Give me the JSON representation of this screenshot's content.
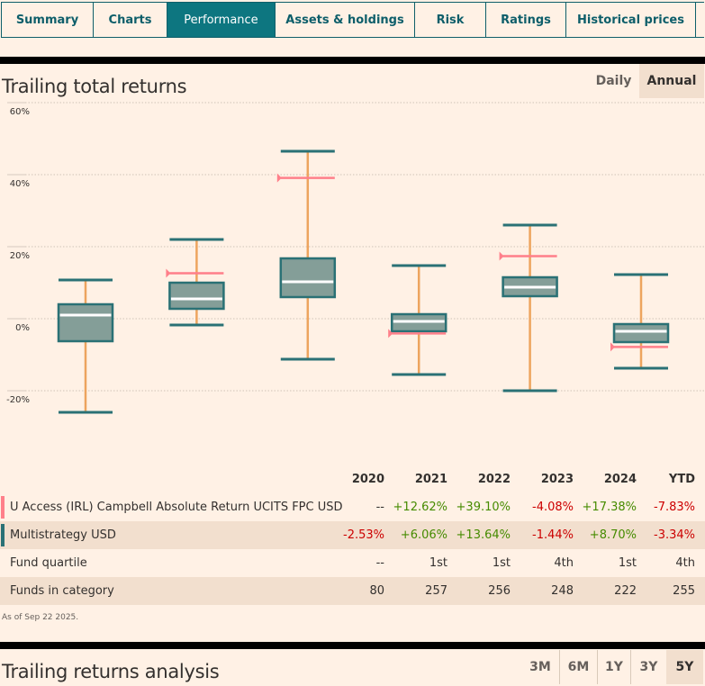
{
  "tabs": [
    {
      "label": "Summary",
      "active": false
    },
    {
      "label": "Charts",
      "active": false
    },
    {
      "label": "Performance",
      "active": true
    },
    {
      "label": "Assets & holdings",
      "active": false
    },
    {
      "label": "Risk",
      "active": false
    },
    {
      "label": "Ratings",
      "active": false
    },
    {
      "label": "Historical prices",
      "active": false
    }
  ],
  "trailing_total": {
    "title": "Trailing total returns",
    "toggle": [
      {
        "label": "Daily",
        "active": false
      },
      {
        "label": "Annual",
        "active": true
      }
    ]
  },
  "colors": {
    "accent": "#0d7680",
    "box_fill": "#849e98",
    "box_stroke": "#2a7175",
    "whisker": "#eda45e",
    "fund_marker": "#ff7f8a",
    "positive": "#458b00",
    "negative": "#cc0000"
  },
  "chart_data": {
    "type": "box",
    "title": "Trailing total returns",
    "ylabel": "",
    "xlabel": "",
    "ylim": [
      -20,
      60
    ],
    "yticks": [
      60,
      40,
      20,
      0,
      -20
    ],
    "ytick_labels": [
      "60%",
      "40%",
      "20%",
      "0%",
      "-20%"
    ],
    "grid": true,
    "categories": [
      "2020",
      "2021",
      "2022",
      "2023",
      "2024",
      "YTD"
    ],
    "category_boxes": [
      {
        "min": -26.0,
        "q1": -6.25,
        "median": 1.0,
        "q3": 4.0,
        "max": 10.75
      },
      {
        "min": -1.75,
        "q1": 2.75,
        "median": 5.5,
        "q3": 10.0,
        "max": 22.0
      },
      {
        "min": -11.25,
        "q1": 6.0,
        "median": 10.25,
        "q3": 16.75,
        "max": 46.5
      },
      {
        "min": -15.5,
        "q1": -3.5,
        "median": -0.75,
        "q3": 1.25,
        "max": 14.75
      },
      {
        "min": -20.0,
        "q1": 6.25,
        "median": 8.75,
        "q3": 11.5,
        "max": 26.0
      },
      {
        "min": -13.75,
        "q1": -6.5,
        "median": -3.5,
        "q3": -1.5,
        "max": 12.25
      }
    ],
    "fund_series": {
      "name": "U Access (IRL) Campbell Absolute Return UCITS FPC USD",
      "values": [
        null,
        12.62,
        39.1,
        -4.08,
        17.38,
        -7.83
      ]
    }
  },
  "table": {
    "headers": [
      "2020",
      "2021",
      "2022",
      "2023",
      "2024",
      "YTD"
    ],
    "rows": [
      {
        "label": "U Access (IRL) Campbell Absolute Return UCITS FPC USD",
        "marker": "fund",
        "cells": [
          {
            "v": "--",
            "s": "neu"
          },
          {
            "v": "+12.62%",
            "s": "pos"
          },
          {
            "v": "+39.10%",
            "s": "pos"
          },
          {
            "v": "-4.08%",
            "s": "neg"
          },
          {
            "v": "+17.38%",
            "s": "pos"
          },
          {
            "v": "-7.83%",
            "s": "neg"
          }
        ]
      },
      {
        "label": "Multistrategy USD",
        "marker": "category",
        "cells": [
          {
            "v": "-2.53%",
            "s": "neg"
          },
          {
            "v": "+6.06%",
            "s": "pos"
          },
          {
            "v": "+13.64%",
            "s": "pos"
          },
          {
            "v": "-1.44%",
            "s": "neg"
          },
          {
            "v": "+8.70%",
            "s": "pos"
          },
          {
            "v": "-3.34%",
            "s": "neg"
          }
        ]
      },
      {
        "label": "Fund quartile",
        "marker": null,
        "cells": [
          {
            "v": "--",
            "s": "neu"
          },
          {
            "v": "1st",
            "s": "neu"
          },
          {
            "v": "1st",
            "s": "neu"
          },
          {
            "v": "4th",
            "s": "neu"
          },
          {
            "v": "1st",
            "s": "neu"
          },
          {
            "v": "4th",
            "s": "neu"
          }
        ]
      },
      {
        "label": "Funds in category",
        "marker": null,
        "cells": [
          {
            "v": "80",
            "s": "neu"
          },
          {
            "v": "257",
            "s": "neu"
          },
          {
            "v": "256",
            "s": "neu"
          },
          {
            "v": "248",
            "s": "neu"
          },
          {
            "v": "222",
            "s": "neu"
          },
          {
            "v": "255",
            "s": "neu"
          }
        ]
      }
    ],
    "as_of": "As of Sep 22 2025."
  },
  "trailing_analysis": {
    "title": "Trailing returns analysis",
    "periods": [
      {
        "label": "3M",
        "active": false
      },
      {
        "label": "6M",
        "active": false
      },
      {
        "label": "1Y",
        "active": false
      },
      {
        "label": "3Y",
        "active": false
      },
      {
        "label": "5Y",
        "active": true
      }
    ]
  }
}
